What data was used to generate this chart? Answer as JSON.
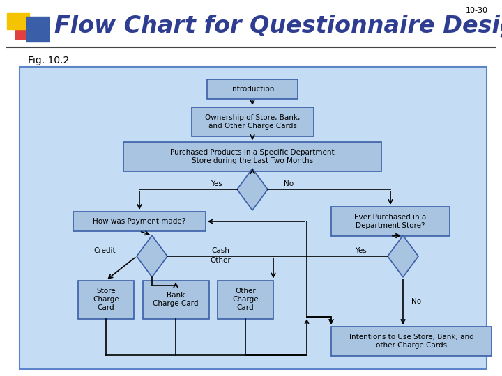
{
  "slide_num": "10-30",
  "title": "Flow Chart for Questionnaire Design",
  "subtitle": "Fig. 10.2",
  "title_color": "#2E3D8F",
  "title_fontsize": 26,
  "box_fill": "#A8C4E0",
  "box_edge": "#3A5EA8",
  "diamond_fill": "#A8C4E0",
  "diamond_edge": "#3A5EA8",
  "chart_bg": "#C5DDF4",
  "chart_border": "#5B85C8",
  "header_colors": [
    "#F5C400",
    "#E04040",
    "#3A5EA8"
  ],
  "line_color": "#000000",
  "text_color": "#000000",
  "font_size": 7.5,
  "title_font_size": 24
}
